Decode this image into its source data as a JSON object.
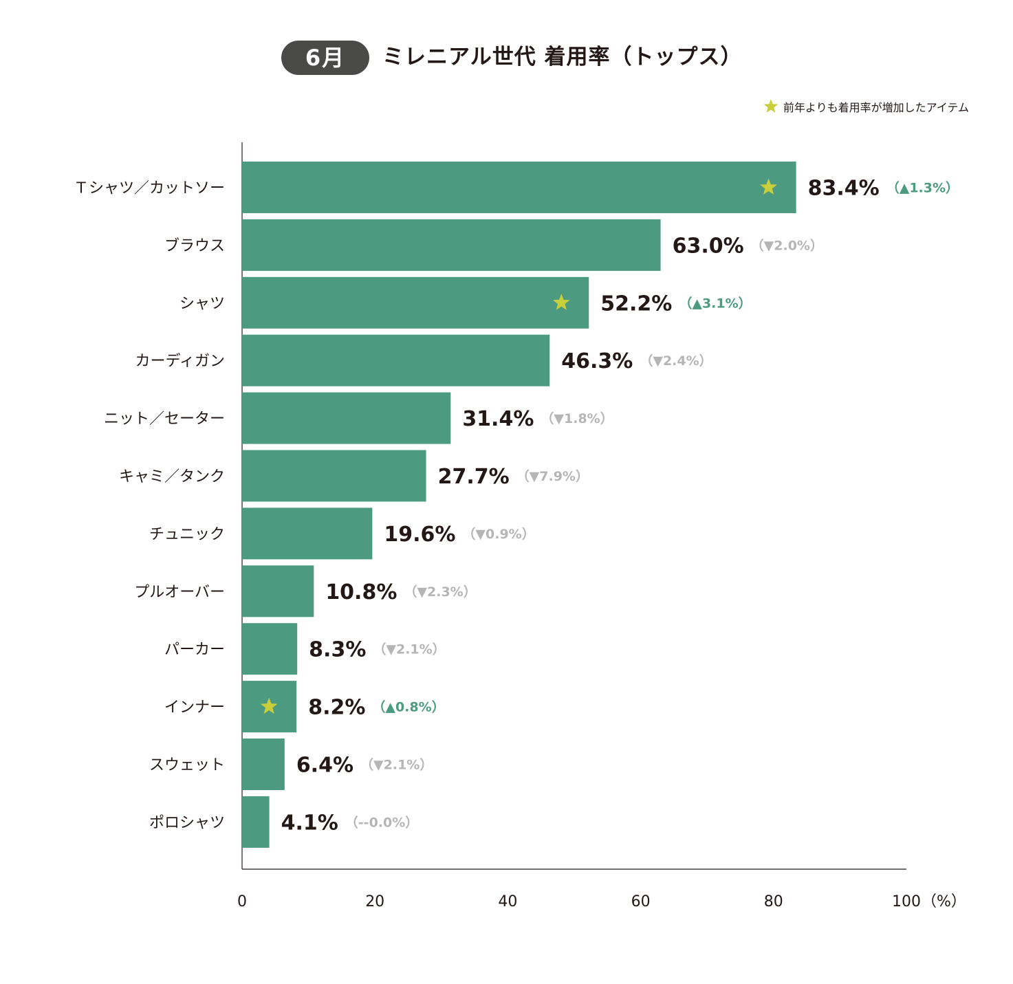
{
  "header": {
    "month": "6月",
    "title": "ミレニアル世代 着用率（トップス）"
  },
  "legend": {
    "text": "前年よりも着用率が増加したアイテム"
  },
  "colors": {
    "bar": "#4c9b80",
    "star": "#c9cf3a",
    "up": "#4c9b80",
    "down": "#b5b5b5",
    "pill": "#4a4a48"
  },
  "chart_data": {
    "type": "bar",
    "orientation": "horizontal",
    "title": "ミレニアル世代 着用率（トップス）",
    "xlabel": "（%）",
    "xlim": [
      0,
      100
    ],
    "ticks": [
      "0",
      "20",
      "40",
      "60",
      "80",
      "100"
    ],
    "unit_label": "（%）",
    "categories": [
      "Ｔシャツ／カットソー",
      "ブラウス",
      "シャツ",
      "カーディガン",
      "ニット／セーター",
      "キャミ／タンク",
      "チュニック",
      "プルオーバー",
      "パーカー",
      "インナー",
      "スウェット",
      "ポロシャツ"
    ],
    "values": [
      83.4,
      63.0,
      52.2,
      46.3,
      31.4,
      27.7,
      19.6,
      10.8,
      8.3,
      8.2,
      6.4,
      4.1
    ],
    "value_labels": [
      "83.4%",
      "63.0%",
      "52.2%",
      "46.3%",
      "31.4%",
      "27.7%",
      "19.6%",
      "10.8%",
      "8.3%",
      "8.2%",
      "6.4%",
      "4.1%"
    ],
    "change_labels": [
      "（▲1.3%）",
      "（▼2.0%）",
      "（▲3.1%）",
      "（▼2.4%）",
      "（▼1.8%）",
      "（▼7.9%）",
      "（▼0.9%）",
      "（▼2.3%）",
      "（▼2.1%）",
      "（▲0.8%）",
      "（▼2.1%）",
      "（--0.0%）"
    ],
    "change_direction": [
      "up",
      "down",
      "up",
      "down",
      "down",
      "down",
      "down",
      "down",
      "down",
      "up",
      "down",
      "flat"
    ],
    "increased": [
      true,
      false,
      true,
      false,
      false,
      false,
      false,
      false,
      false,
      true,
      false,
      false
    ]
  }
}
